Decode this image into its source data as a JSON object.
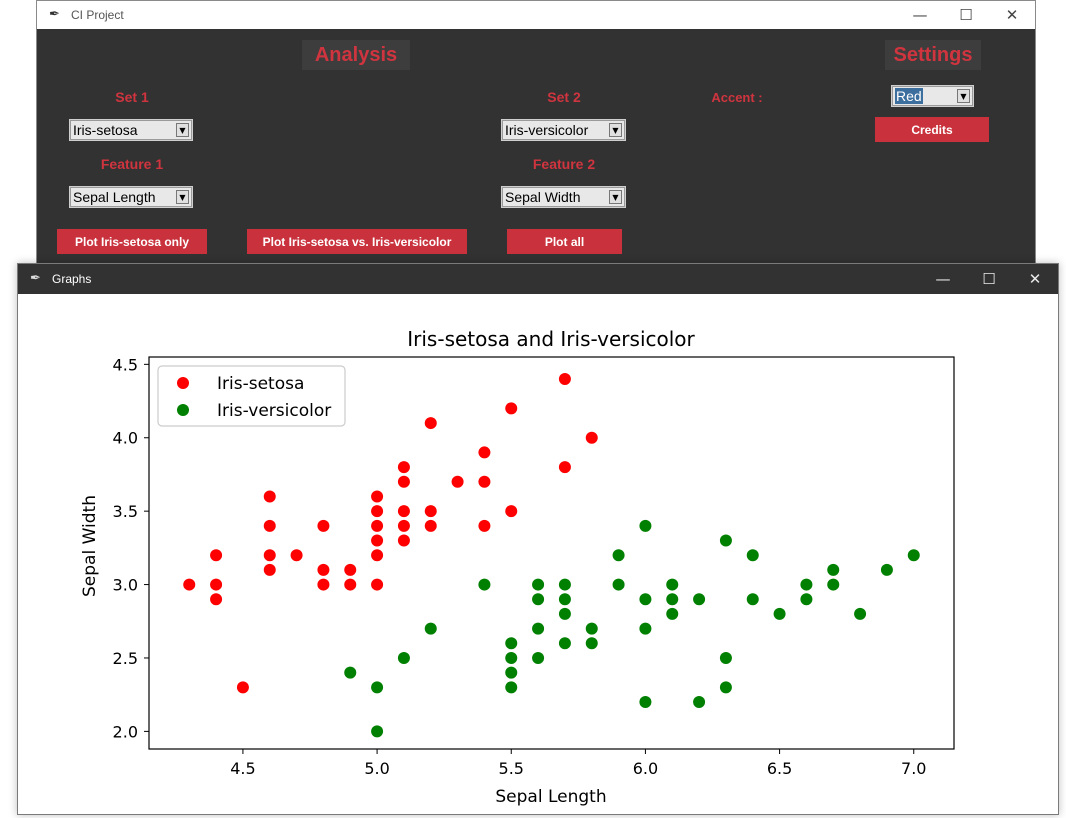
{
  "main_window": {
    "title": "CI Project",
    "icon": "feather-icon",
    "controls": {
      "minimize": "—",
      "maximize": "☐",
      "close": "✕"
    },
    "analysis_heading": "Analysis",
    "settings_heading": "Settings",
    "set1_label": "Set 1",
    "set2_label": "Set 2",
    "set1_value": "Iris-setosa",
    "set2_value": "Iris-versicolor",
    "feature1_label": "Feature 1",
    "feature2_label": "Feature 2",
    "feature1_value": "Sepal Length",
    "feature2_value": "Sepal Width",
    "accent_label": "Accent :",
    "accent_value": "Red",
    "credits_button": "Credits",
    "plot_only_button": "Plot Iris-setosa only",
    "plot_vs_button": "Plot Iris-setosa vs. Iris-versicolor",
    "plot_all_button": "Plot all",
    "accent_color": "#c9323d"
  },
  "graph_window": {
    "title": "Graphs",
    "icon": "feather-icon",
    "controls": {
      "minimize": "—",
      "maximize": "☐",
      "close": "✕"
    }
  },
  "chart_data": {
    "type": "scatter",
    "title": "Iris-setosa and Iris-versicolor",
    "xlabel": "Sepal Length",
    "ylabel": "Sepal Width",
    "xlim": [
      4.15,
      7.15
    ],
    "ylim": [
      1.88,
      4.55
    ],
    "xticks": [
      4.5,
      5.0,
      5.5,
      6.0,
      6.5,
      7.0
    ],
    "yticks": [
      2.0,
      2.5,
      3.0,
      3.5,
      4.0,
      4.5
    ],
    "xtick_labels": [
      "4.5",
      "5.0",
      "5.5",
      "6.0",
      "6.5",
      "7.0"
    ],
    "ytick_labels": [
      "2.0",
      "2.5",
      "3.0",
      "3.5",
      "4.0",
      "4.5"
    ],
    "grid": false,
    "legend_position": "top-left",
    "series": [
      {
        "name": "Iris-setosa",
        "color": "#ff0000",
        "points": [
          [
            4.3,
            3.0
          ],
          [
            4.4,
            3.2
          ],
          [
            4.4,
            3.0
          ],
          [
            4.4,
            2.9
          ],
          [
            4.5,
            2.3
          ],
          [
            4.6,
            3.6
          ],
          [
            4.6,
            3.4
          ],
          [
            4.6,
            3.2
          ],
          [
            4.6,
            3.1
          ],
          [
            4.7,
            3.2
          ],
          [
            4.8,
            3.4
          ],
          [
            4.8,
            3.1
          ],
          [
            4.8,
            3.0
          ],
          [
            4.9,
            3.1
          ],
          [
            4.9,
            3.0
          ],
          [
            5.0,
            3.6
          ],
          [
            5.0,
            3.5
          ],
          [
            5.0,
            3.4
          ],
          [
            5.0,
            3.3
          ],
          [
            5.0,
            3.2
          ],
          [
            5.0,
            3.0
          ],
          [
            5.1,
            3.8
          ],
          [
            5.1,
            3.7
          ],
          [
            5.1,
            3.5
          ],
          [
            5.1,
            3.4
          ],
          [
            5.1,
            3.3
          ],
          [
            5.2,
            4.1
          ],
          [
            5.2,
            3.5
          ],
          [
            5.2,
            3.4
          ],
          [
            5.3,
            3.7
          ],
          [
            5.4,
            3.9
          ],
          [
            5.4,
            3.7
          ],
          [
            5.4,
            3.4
          ],
          [
            5.5,
            4.2
          ],
          [
            5.5,
            3.5
          ],
          [
            5.7,
            4.4
          ],
          [
            5.7,
            3.8
          ],
          [
            5.8,
            4.0
          ]
        ]
      },
      {
        "name": "Iris-versicolor",
        "color": "#008000",
        "points": [
          [
            4.9,
            2.4
          ],
          [
            5.0,
            2.3
          ],
          [
            5.0,
            2.0
          ],
          [
            5.1,
            2.5
          ],
          [
            5.2,
            2.7
          ],
          [
            5.4,
            3.0
          ],
          [
            5.5,
            2.6
          ],
          [
            5.5,
            2.5
          ],
          [
            5.5,
            2.4
          ],
          [
            5.5,
            2.3
          ],
          [
            5.6,
            3.0
          ],
          [
            5.6,
            2.9
          ],
          [
            5.6,
            2.7
          ],
          [
            5.6,
            2.5
          ],
          [
            5.7,
            3.0
          ],
          [
            5.7,
            2.9
          ],
          [
            5.7,
            2.8
          ],
          [
            5.7,
            2.6
          ],
          [
            5.8,
            2.7
          ],
          [
            5.8,
            2.6
          ],
          [
            5.9,
            3.2
          ],
          [
            5.9,
            3.0
          ],
          [
            6.0,
            3.4
          ],
          [
            6.0,
            2.9
          ],
          [
            6.0,
            2.7
          ],
          [
            6.0,
            2.2
          ],
          [
            6.1,
            3.0
          ],
          [
            6.1,
            2.9
          ],
          [
            6.1,
            2.8
          ],
          [
            6.2,
            2.9
          ],
          [
            6.2,
            2.2
          ],
          [
            6.3,
            3.3
          ],
          [
            6.3,
            2.5
          ],
          [
            6.3,
            2.3
          ],
          [
            6.4,
            3.2
          ],
          [
            6.4,
            2.9
          ],
          [
            6.5,
            2.8
          ],
          [
            6.6,
            3.0
          ],
          [
            6.6,
            2.9
          ],
          [
            6.7,
            3.1
          ],
          [
            6.7,
            3.0
          ],
          [
            6.8,
            2.8
          ],
          [
            6.9,
            3.1
          ],
          [
            7.0,
            3.2
          ]
        ]
      }
    ]
  }
}
